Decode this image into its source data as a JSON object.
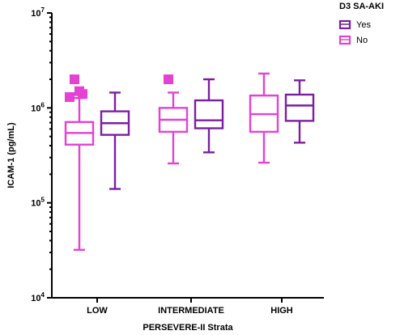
{
  "chart_data": {
    "type": "box",
    "title": "",
    "xlabel": "PERSEVERE-II Strata",
    "ylabel": "ICAM-1 (pg/mL)",
    "yscale": "log",
    "ylim": [
      10000,
      10000000
    ],
    "y_ticks": [
      {
        "value": 10000,
        "base": "10",
        "exp": "4"
      },
      {
        "value": 100000,
        "base": "10",
        "exp": "5"
      },
      {
        "value": 1000000,
        "base": "10",
        "exp": "6"
      },
      {
        "value": 10000000,
        "base": "10",
        "exp": "7"
      }
    ],
    "categories": [
      "LOW",
      "INTERMEDIATE",
      "HIGH"
    ],
    "legend": {
      "title": "D3 SA-AKI",
      "placement": "top-right",
      "entries": [
        "Yes",
        "No"
      ]
    },
    "series": [
      {
        "name": "No",
        "color": "#e542d4",
        "boxes": [
          {
            "category": "LOW",
            "min": 32000,
            "q1": 410000,
            "median": 545000,
            "q3": 710000,
            "max": 1270000,
            "outliers": [
              2000000,
              1400000,
              1300000,
              1500000
            ]
          },
          {
            "category": "INTERMEDIATE",
            "min": 260000,
            "q1": 560000,
            "median": 750000,
            "q3": 1000000,
            "max": 1450000,
            "outliers": [
              2000000
            ]
          },
          {
            "category": "HIGH",
            "min": 265000,
            "q1": 560000,
            "median": 860000,
            "q3": 1350000,
            "max": 2300000,
            "outliers": []
          }
        ]
      },
      {
        "name": "Yes",
        "color": "#7b1fa2",
        "boxes": [
          {
            "category": "LOW",
            "min": 140000,
            "q1": 520000,
            "median": 690000,
            "q3": 920000,
            "max": 1450000,
            "outliers": []
          },
          {
            "category": "INTERMEDIATE",
            "min": 340000,
            "q1": 610000,
            "median": 740000,
            "q3": 1200000,
            "max": 2000000,
            "outliers": []
          },
          {
            "category": "HIGH",
            "min": 430000,
            "q1": 730000,
            "median": 1060000,
            "q3": 1380000,
            "max": 1950000,
            "outliers": []
          }
        ]
      }
    ]
  }
}
